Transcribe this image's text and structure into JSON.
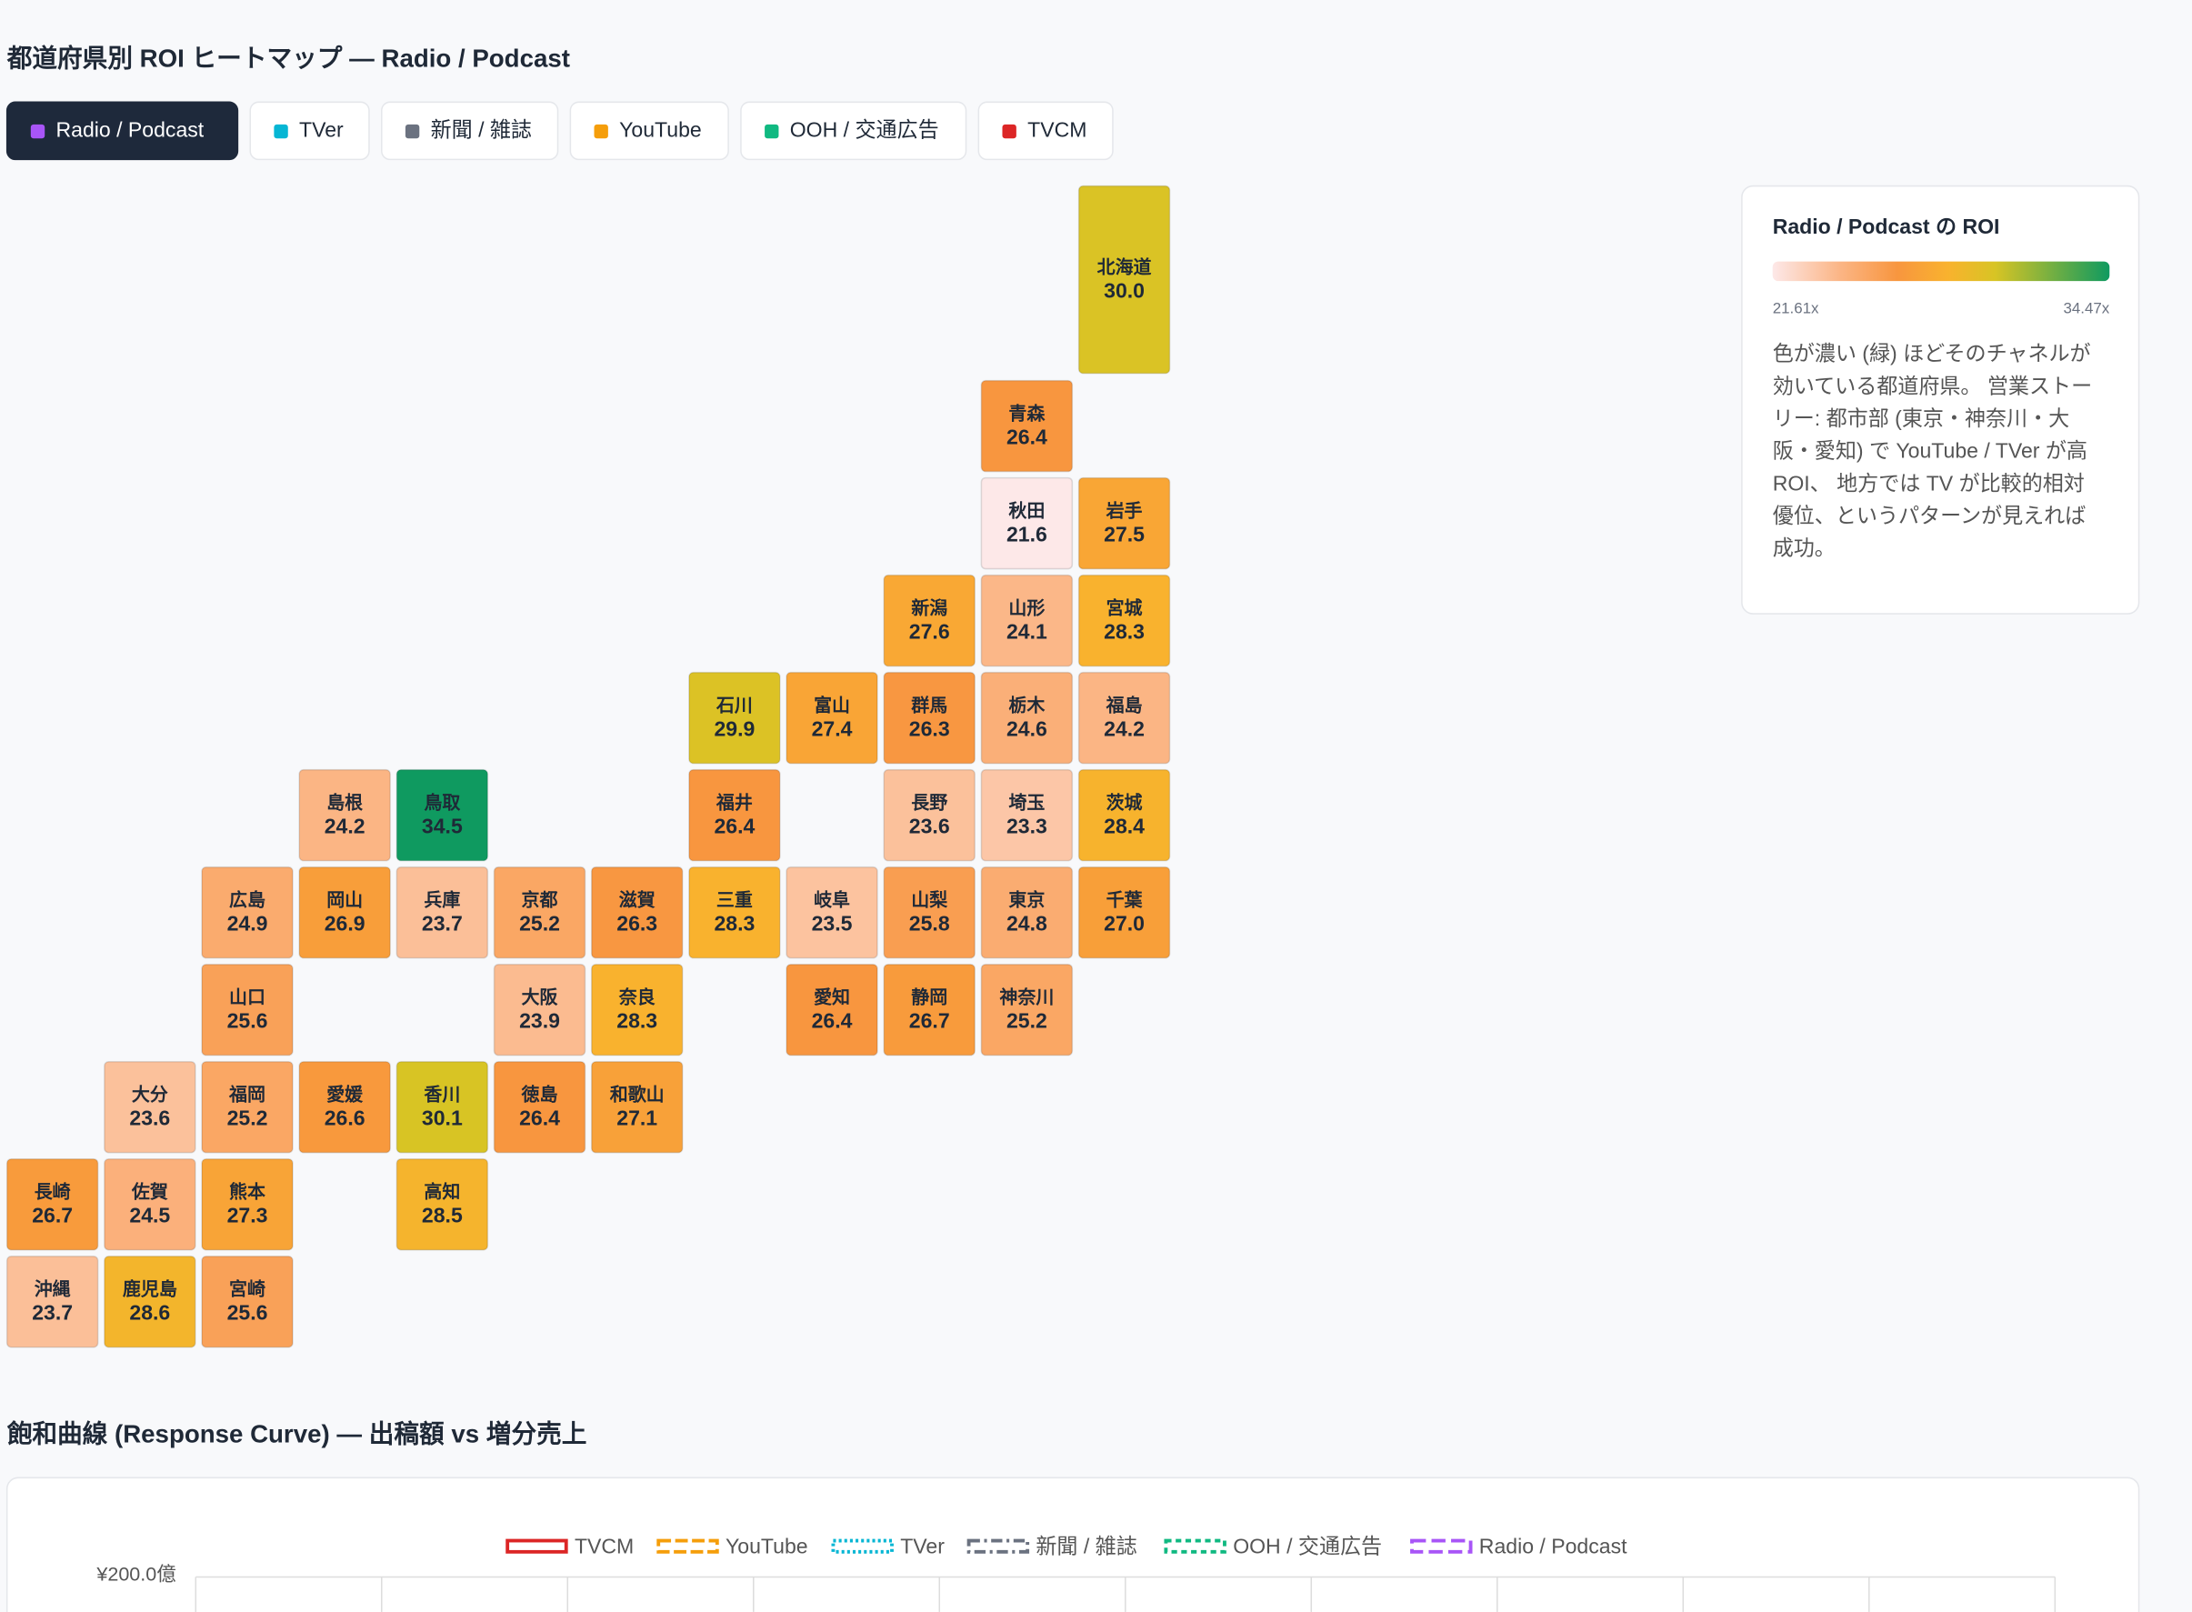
{
  "header": {
    "title": "都道府県別 ROI ヒートマップ — Radio / Podcast"
  },
  "tabs": [
    {
      "label": "Radio / Podcast",
      "color": "#a855f7",
      "active": true
    },
    {
      "label": "TVer",
      "color": "#06b6d4"
    },
    {
      "label": "新聞 / 雑誌",
      "color": "#6b7280"
    },
    {
      "label": "YouTube",
      "color": "#f59e0b"
    },
    {
      "label": "OOH / 交通広告",
      "color": "#10b981"
    },
    {
      "label": "TVCM",
      "color": "#dc2626"
    }
  ],
  "tiles": [
    {
      "name": "北海道",
      "value": 30.0,
      "value_label": "30.0"
    },
    {
      "name": "青森",
      "value": 26.4,
      "value_label": "26.4"
    },
    {
      "name": "秋田",
      "value": 21.6,
      "value_label": "21.6"
    },
    {
      "name": "岩手",
      "value": 27.5,
      "value_label": "27.5"
    },
    {
      "name": "新潟",
      "value": 27.6,
      "value_label": "27.6"
    },
    {
      "name": "山形",
      "value": 24.1,
      "value_label": "24.1"
    },
    {
      "name": "宮城",
      "value": 28.3,
      "value_label": "28.3"
    },
    {
      "name": "石川",
      "value": 29.9,
      "value_label": "29.9"
    },
    {
      "name": "富山",
      "value": 27.4,
      "value_label": "27.4"
    },
    {
      "name": "群馬",
      "value": 26.3,
      "value_label": "26.3"
    },
    {
      "name": "栃木",
      "value": 24.6,
      "value_label": "24.6"
    },
    {
      "name": "福島",
      "value": 24.2,
      "value_label": "24.2"
    },
    {
      "name": "島根",
      "value": 24.2,
      "value_label": "24.2"
    },
    {
      "name": "鳥取",
      "value": 34.5,
      "value_label": "34.5"
    },
    {
      "name": "福井",
      "value": 26.4,
      "value_label": "26.4"
    },
    {
      "name": "長野",
      "value": 23.6,
      "value_label": "23.6"
    },
    {
      "name": "埼玉",
      "value": 23.3,
      "value_label": "23.3"
    },
    {
      "name": "茨城",
      "value": 28.4,
      "value_label": "28.4"
    },
    {
      "name": "広島",
      "value": 24.9,
      "value_label": "24.9"
    },
    {
      "name": "岡山",
      "value": 26.9,
      "value_label": "26.9"
    },
    {
      "name": "兵庫",
      "value": 23.7,
      "value_label": "23.7"
    },
    {
      "name": "京都",
      "value": 25.2,
      "value_label": "25.2"
    },
    {
      "name": "滋賀",
      "value": 26.3,
      "value_label": "26.3"
    },
    {
      "name": "三重",
      "value": 28.3,
      "value_label": "28.3"
    },
    {
      "name": "岐阜",
      "value": 23.5,
      "value_label": "23.5"
    },
    {
      "name": "山梨",
      "value": 25.8,
      "value_label": "25.8"
    },
    {
      "name": "東京",
      "value": 24.8,
      "value_label": "24.8"
    },
    {
      "name": "千葉",
      "value": 27.0,
      "value_label": "27.0"
    },
    {
      "name": "山口",
      "value": 25.6,
      "value_label": "25.6"
    },
    {
      "name": "大阪",
      "value": 23.9,
      "value_label": "23.9"
    },
    {
      "name": "奈良",
      "value": 28.3,
      "value_label": "28.3"
    },
    {
      "name": "愛知",
      "value": 26.4,
      "value_label": "26.4"
    },
    {
      "name": "静岡",
      "value": 26.7,
      "value_label": "26.7"
    },
    {
      "name": "神奈川",
      "value": 25.2,
      "value_label": "25.2"
    },
    {
      "name": "大分",
      "value": 23.6,
      "value_label": "23.6"
    },
    {
      "name": "福岡",
      "value": 25.2,
      "value_label": "25.2"
    },
    {
      "name": "愛媛",
      "value": 26.6,
      "value_label": "26.6"
    },
    {
      "name": "香川",
      "value": 30.1,
      "value_label": "30.1"
    },
    {
      "name": "徳島",
      "value": 26.4,
      "value_label": "26.4"
    },
    {
      "name": "和歌山",
      "value": 27.1,
      "value_label": "27.1"
    },
    {
      "name": "長崎",
      "value": 26.7,
      "value_label": "26.7"
    },
    {
      "name": "佐賀",
      "value": 24.5,
      "value_label": "24.5"
    },
    {
      "name": "熊本",
      "value": 27.3,
      "value_label": "27.3"
    },
    {
      "name": "高知",
      "value": 28.5,
      "value_label": "28.5"
    },
    {
      "name": "沖縄",
      "value": 23.7,
      "value_label": "23.7"
    },
    {
      "name": "鹿児島",
      "value": 28.6,
      "value_label": "28.6"
    },
    {
      "name": "宮崎",
      "value": 25.6,
      "value_label": "25.6"
    }
  ],
  "legend_panel": {
    "title": "Radio / Podcast の ROI",
    "min": 21.61,
    "max": 34.47,
    "min_label": "21.61x",
    "max_label": "34.47x",
    "description": [
      "色が濃い (緑) ほどそのチャネルが",
      "効いている都道府県。 営業ストー",
      "リー: 都市部 (東京・神奈川・大",
      "阪・愛知) で YouTube / TVer が高",
      "ROI、 地方では TV が比較的相対",
      "優位、というパターンが見えれば",
      "成功。"
    ]
  },
  "response_curve": {
    "title": "飽和曲線 (Response Curve) — 出稿額 vs 増分売上",
    "legend": [
      {
        "name": "TVCM",
        "color": "#dc2626"
      },
      {
        "name": "YouTube",
        "color": "#f59e0b"
      },
      {
        "name": "TVer",
        "color": "#06b6d4"
      },
      {
        "name": "新聞 / 雑誌",
        "color": "#6b7280"
      },
      {
        "name": "OOH / 交通広告",
        "color": "#10b981"
      },
      {
        "name": "Radio / Podcast",
        "color": "#a855f7"
      }
    ],
    "y_tick_label": "¥200.0億"
  }
}
